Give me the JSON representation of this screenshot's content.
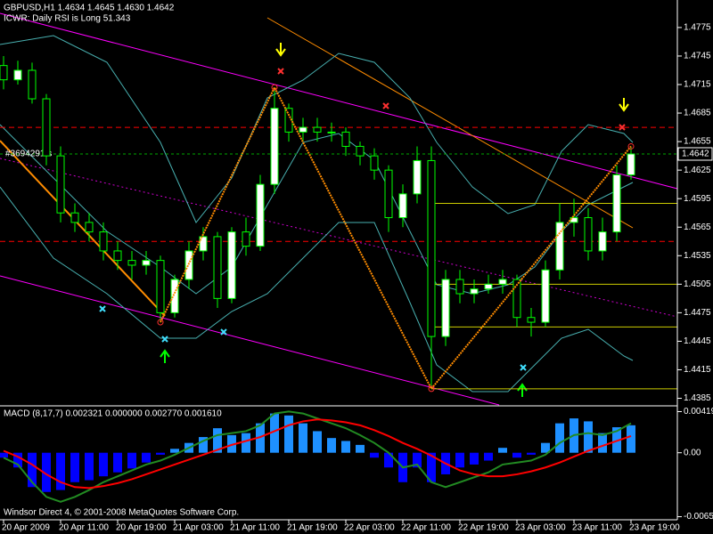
{
  "chart_data": [
    {
      "type": "candlestick",
      "title": "GBPUSD,H1  1.4634 1.4645 1.4630 1.4642",
      "subtitle": "ICWR: Daily RSI is Long 51.343",
      "annotation": "#3694291 s",
      "categories": [
        "20 Apr 2009",
        null,
        null,
        null,
        "20 Apr 11:00",
        null,
        null,
        null,
        "20 Apr 19:00",
        null,
        null,
        null,
        "21 Apr 03:00",
        null,
        null,
        null,
        "21 Apr 11:00",
        null,
        null,
        null,
        "21 Apr 19:00",
        null,
        null,
        null,
        "22 Apr 03:00",
        null,
        null,
        null,
        "22 Apr 11:00",
        null,
        null,
        null,
        "22 Apr 19:00",
        null,
        null,
        null,
        "23 Apr 03:00",
        null,
        null,
        null,
        "23 Apr 11:00",
        null,
        null,
        null,
        "23 Apr 19:00"
      ],
      "open": [
        1.4735,
        1.472,
        1.473,
        1.47,
        1.464,
        1.458,
        1.457,
        1.456,
        1.454,
        1.453,
        1.4525,
        1.453,
        1.4475,
        1.451,
        1.454,
        1.4555,
        1.449,
        1.456,
        1.4545,
        1.461,
        1.469,
        1.4665,
        1.467,
        1.4665,
        1.4665,
        1.465,
        1.464,
        1.4625,
        1.4575,
        1.46,
        1.4635,
        1.445,
        1.451,
        1.4495,
        1.45,
        1.4505,
        1.451,
        1.447,
        1.4465,
        1.452,
        1.457,
        1.4575,
        1.454,
        1.456,
        1.462
      ],
      "high": [
        1.4745,
        1.474,
        1.4738,
        1.4705,
        1.465,
        1.459,
        1.458,
        1.457,
        1.455,
        1.454,
        1.454,
        1.4535,
        1.4515,
        1.455,
        1.4565,
        1.456,
        1.4565,
        1.4575,
        1.462,
        1.4712,
        1.4695,
        1.468,
        1.468,
        1.4675,
        1.467,
        1.4655,
        1.4648,
        1.463,
        1.461,
        1.465,
        1.465,
        1.452,
        1.452,
        1.451,
        1.4515,
        1.452,
        1.4515,
        1.448,
        1.453,
        1.459,
        1.4595,
        1.4585,
        1.4575,
        1.463,
        1.465
      ],
      "low": [
        1.471,
        1.4715,
        1.4695,
        1.463,
        1.457,
        1.456,
        1.455,
        1.453,
        1.452,
        1.451,
        1.4515,
        1.4465,
        1.447,
        1.45,
        1.453,
        1.448,
        1.4485,
        1.4535,
        1.454,
        1.46,
        1.4655,
        1.4655,
        1.4655,
        1.4655,
        1.464,
        1.463,
        1.4615,
        1.456,
        1.4565,
        1.459,
        1.4395,
        1.444,
        1.4485,
        1.4485,
        1.4495,
        1.4495,
        1.446,
        1.445,
        1.446,
        1.451,
        1.4555,
        1.453,
        1.453,
        1.455,
        1.4615
      ],
      "close": [
        1.472,
        1.473,
        1.47,
        1.464,
        1.458,
        1.457,
        1.456,
        1.454,
        1.453,
        1.4525,
        1.453,
        1.4475,
        1.451,
        1.454,
        1.4555,
        1.449,
        1.456,
        1.4545,
        1.461,
        1.469,
        1.4665,
        1.467,
        1.4665,
        1.4665,
        1.465,
        1.464,
        1.4625,
        1.4575,
        1.46,
        1.4635,
        1.445,
        1.451,
        1.4495,
        1.45,
        1.4505,
        1.451,
        1.447,
        1.4465,
        1.452,
        1.457,
        1.4575,
        1.454,
        1.456,
        1.462,
        1.4642
      ],
      "up_color": "#ffffff",
      "down_color": "#000000",
      "wick_color": "#00ff00",
      "zigzag": {
        "color": "#ff8c00",
        "x": [
          11,
          19,
          30,
          44
        ],
        "values": [
          1.4465,
          1.4712,
          1.4395,
          1.465
        ]
      },
      "hlines": [
        {
          "value": 1.467,
          "color": "#ff0000"
        },
        {
          "value": 1.455,
          "color": "#ff0000"
        }
      ],
      "levels": {
        "color": "#cccc00",
        "values": [
          1.459,
          1.4505,
          1.446,
          1.4395
        ]
      },
      "order_line": {
        "value": 1.4642,
        "color": "#00aa00"
      },
      "ylim": [
        1.4378,
        1.4803
      ],
      "yticks": [
        1.4775,
        1.4745,
        1.4715,
        1.4685,
        1.4655,
        1.4625,
        1.4595,
        1.4565,
        1.4535,
        1.4505,
        1.4475,
        1.4445,
        1.4415,
        1.4385
      ],
      "grid": false
    },
    {
      "type": "macd",
      "title": "MACD  (8,17,7) 0.002321 0.000000 0.002770 0.001610",
      "values": [
        -0.0005,
        -0.0015,
        -0.0035,
        -0.004,
        -0.0038,
        -0.003,
        -0.0028,
        -0.0024,
        -0.002,
        -0.0016,
        -0.001,
        -0.0002,
        0.0004,
        0.001,
        0.0016,
        0.0025,
        0.0018,
        0.002,
        0.003,
        0.004,
        0.0038,
        0.003,
        0.0022,
        0.0015,
        0.0012,
        0.0008,
        -0.0005,
        -0.0015,
        -0.003,
        -0.0015,
        -0.003,
        -0.0022,
        -0.0015,
        -0.0012,
        -0.0008,
        0.0005,
        -0.0005,
        -0.0002,
        0.001,
        0.003,
        0.0035,
        0.0032,
        0.002,
        0.0026,
        0.0028
      ],
      "color": "#1e90ff",
      "negative_color": "#0000ff",
      "series": [
        {
          "color": "#228b22",
          "values": [
            -0.0005,
            -0.0012,
            -0.003,
            -0.0045,
            -0.005,
            -0.0045,
            -0.0038,
            -0.003,
            -0.0024,
            -0.0018,
            -0.0012,
            -0.0008,
            -0.0002,
            0.0005,
            0.0012,
            0.0018,
            0.002,
            0.0022,
            0.0028,
            0.004,
            0.0042,
            0.004,
            0.0035,
            0.003,
            0.0025,
            0.0018,
            0.001,
            0.0,
            -0.0015,
            -0.0012,
            -0.003,
            -0.0035,
            -0.003,
            -0.0025,
            -0.002,
            -0.0012,
            -0.001,
            -0.0008,
            -0.0002,
            0.001,
            0.0018,
            0.002,
            0.0018,
            0.0022,
            0.003
          ]
        },
        {
          "color": "#ff0000",
          "values": [
            0.0002,
            -0.0004,
            -0.0012,
            -0.0022,
            -0.003,
            -0.0035,
            -0.0036,
            -0.0034,
            -0.0031,
            -0.0027,
            -0.0022,
            -0.0017,
            -0.0012,
            -0.0007,
            -0.0002,
            0.0003,
            0.0008,
            0.0012,
            0.0016,
            0.0022,
            0.0028,
            0.0032,
            0.0034,
            0.0033,
            0.0031,
            0.0028,
            0.0023,
            0.0017,
            0.001,
            0.0004,
            -0.0003,
            -0.0011,
            -0.0018,
            -0.0022,
            -0.0024,
            -0.0024,
            -0.0022,
            -0.0019,
            -0.0015,
            -0.001,
            -0.0004,
            0.0002,
            0.0007,
            0.0012,
            0.0017
          ]
        }
      ],
      "ylim": [
        -0.00665,
        0.0046
      ],
      "yticks": [
        0.004194,
        {
          "value": 0,
          "label": "0.00"
        },
        {
          "value": -0.00652,
          "label": "-0.00652"
        }
      ]
    }
  ],
  "footer": "Windsor Direct 4, © 2001-2008 MetaQuotes Software Corp."
}
